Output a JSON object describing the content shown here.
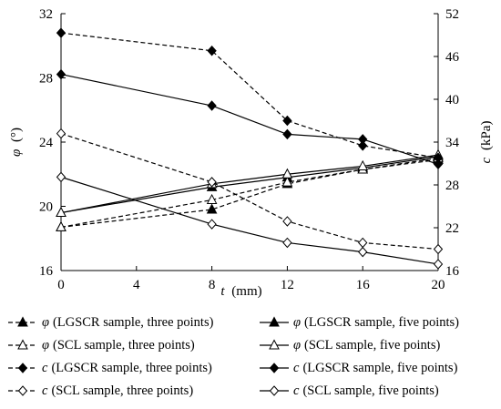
{
  "chart_data": {
    "type": "line",
    "x": [
      0,
      8,
      12,
      16,
      20
    ],
    "xlabel_var": "t",
    "xlabel_unit": "(mm)",
    "ylabel_left": "φ (°)",
    "ylabel_left_var": "φ",
    "ylabel_left_unit": "(°)",
    "ylabel_right": "c (kPa)",
    "ylabel_right_var": "c",
    "ylabel_right_unit": "(kPa)",
    "xlim": [
      0,
      20
    ],
    "ylim_left": [
      16,
      32
    ],
    "ylim_right": [
      16,
      52
    ],
    "x_ticks": [
      0,
      4,
      8,
      12,
      16,
      20
    ],
    "y_ticks_left": [
      16,
      20,
      24,
      28,
      32
    ],
    "y_ticks_right": [
      16,
      22,
      28,
      34,
      40,
      46,
      52
    ],
    "grid": false,
    "legend_position": "bottom",
    "series": [
      {
        "name": "φ (LGSCR sample, three points)",
        "symbol": "φ",
        "desc": "(LGSCR sample, three points)",
        "axis": "left",
        "marker": "triangle-filled",
        "dash": true,
        "values": [
          18.7,
          19.8,
          21.4,
          22.3,
          22.9
        ]
      },
      {
        "name": "φ (LGSCR sample, five points)",
        "symbol": "φ",
        "desc": "(LGSCR sample, five points)",
        "axis": "left",
        "marker": "triangle-filled",
        "dash": false,
        "values": [
          19.6,
          21.2,
          21.8,
          22.4,
          23.1
        ]
      },
      {
        "name": "φ (SCL sample, three points)",
        "symbol": "φ",
        "desc": "(SCL sample, three points)",
        "axis": "left",
        "marker": "triangle-open",
        "dash": true,
        "values": [
          18.7,
          20.4,
          21.5,
          22.3,
          23.0
        ]
      },
      {
        "name": "φ (SCL sample, five points)",
        "symbol": "φ",
        "desc": "(SCL sample, five points)",
        "axis": "left",
        "marker": "triangle-open",
        "dash": false,
        "values": [
          19.6,
          21.4,
          22.0,
          22.5,
          23.2
        ]
      },
      {
        "name": "c (LGSCR sample, three points)",
        "symbol": "c",
        "desc": "(LGSCR sample, three points)",
        "axis": "right",
        "marker": "diamond-filled",
        "dash": true,
        "values": [
          49.3,
          46.8,
          37.0,
          33.5,
          31.8
        ]
      },
      {
        "name": "c (LGSCR sample, five points)",
        "symbol": "c",
        "desc": "(LGSCR sample, five points)",
        "axis": "right",
        "marker": "diamond-filled",
        "dash": false,
        "values": [
          43.5,
          39.1,
          35.1,
          34.4,
          30.9
        ]
      },
      {
        "name": "c (SCL sample, three points)",
        "symbol": "c",
        "desc": "(SCL sample, three points)",
        "axis": "right",
        "marker": "diamond-open",
        "dash": true,
        "values": [
          35.2,
          28.4,
          22.9,
          19.9,
          19.0
        ]
      },
      {
        "name": "c (SCL sample, five points)",
        "symbol": "c",
        "desc": "(SCL sample, five points)",
        "axis": "right",
        "marker": "diamond-open",
        "dash": false,
        "values": [
          29.1,
          22.5,
          19.9,
          18.6,
          16.9
        ]
      }
    ]
  }
}
